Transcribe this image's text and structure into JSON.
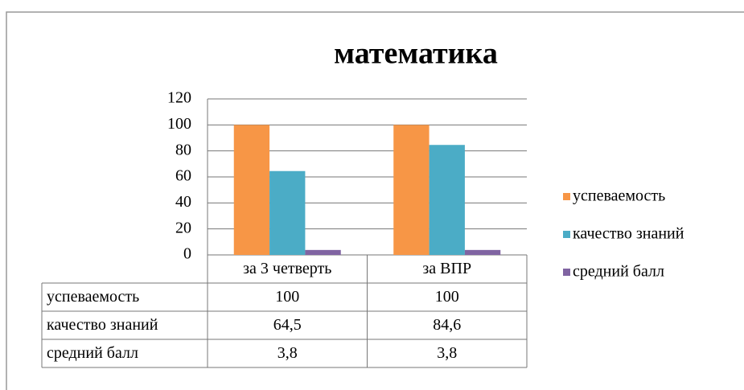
{
  "chart_data": {
    "type": "bar",
    "title": "математика",
    "categories": [
      "за 3 четверть",
      "за ВПР"
    ],
    "series": [
      {
        "name": "успеваемость",
        "color": "#f79646",
        "values": [
          100,
          100
        ],
        "value_labels": [
          "100",
          "100"
        ]
      },
      {
        "name": "качество знаний",
        "color": "#4bacc6",
        "values": [
          64.5,
          84.6
        ],
        "value_labels": [
          "64,5",
          "84,6"
        ]
      },
      {
        "name": "средний балл",
        "color": "#8064a2",
        "values": [
          3.8,
          3.8
        ],
        "value_labels": [
          "3,8",
          "3,8"
        ]
      }
    ],
    "ylim": [
      0,
      120
    ],
    "yticks": [
      0,
      20,
      40,
      60,
      80,
      100,
      120
    ],
    "grid": true,
    "legend": "right"
  }
}
